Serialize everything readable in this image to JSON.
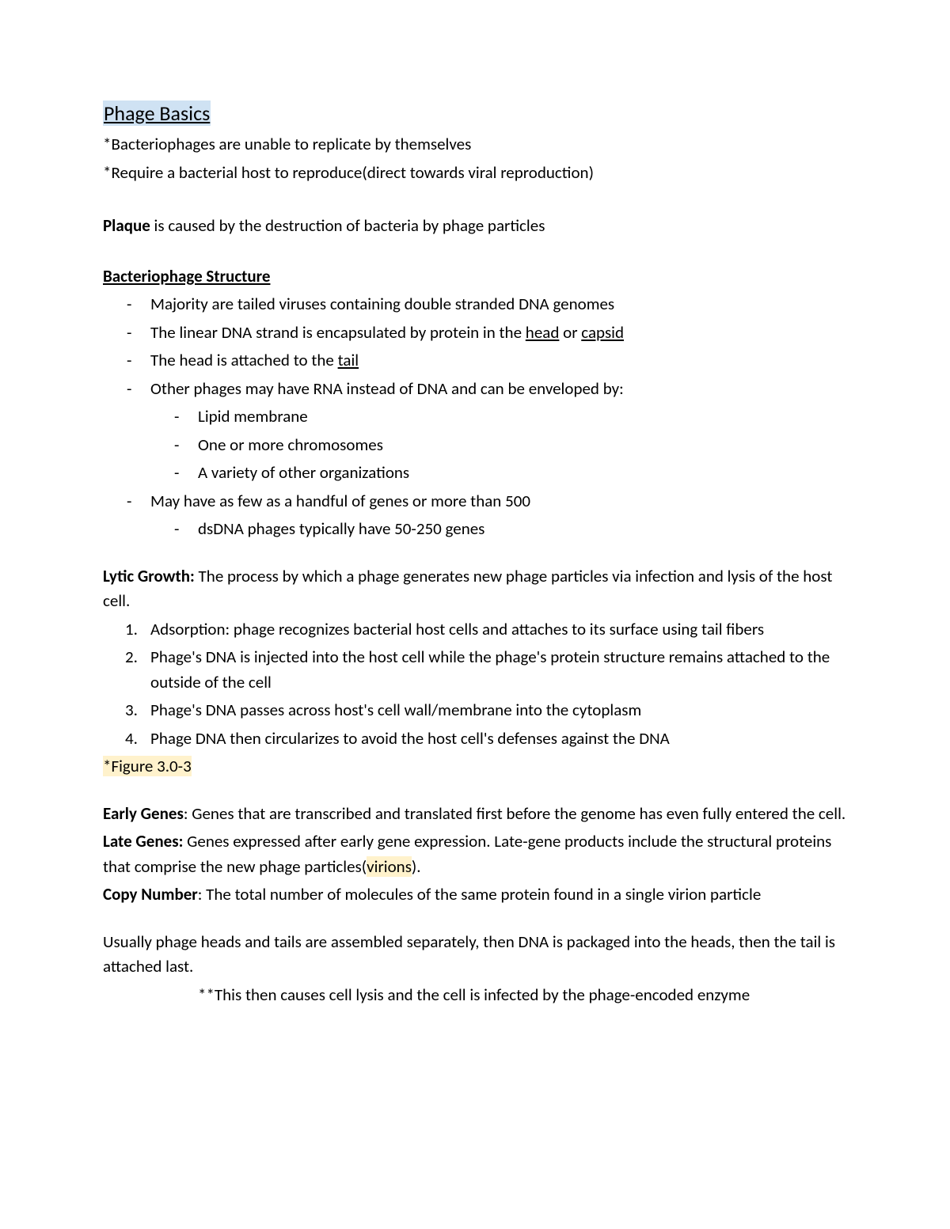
{
  "title": "Phage Basics",
  "intro": {
    "line1": "*Bacteriophages are unable to replicate by themselves",
    "line2": "*Require a bacterial host to reproduce(direct towards viral reproduction)"
  },
  "plaque": {
    "bold": "Plaque",
    "rest": " is caused by the destruction of bacteria by phage particles"
  },
  "structure": {
    "heading": "Bacteriophage Structure",
    "items": {
      "a": "Majority are tailed viruses containing double stranded DNA genomes",
      "b_pre": "The linear DNA strand is encapsulated by protein in the ",
      "b_u1": "head",
      "b_mid": " or ",
      "b_u2": "capsid",
      "c_pre": "The head is attached to the ",
      "c_u": "tail",
      "d": "Other phages may have RNA instead of DNA and can be enveloped by:",
      "d1": "Lipid membrane",
      "d2": "One or more chromosomes",
      "d3": "A variety of other organizations",
      "e": "May have as few as a handful of genes or more than 500",
      "e1": "dsDNA phages typically have 50-250 genes"
    }
  },
  "lytic": {
    "label": "Lytic Growth:",
    "def": " The process by which a phage generates new phage particles via infection and lysis of the host cell.",
    "steps": {
      "s1": "Adsorption: phage recognizes bacterial host cells and attaches to its surface using tail fibers",
      "s2": "Phage's DNA is injected into the host cell while the phage's protein structure remains attached to the outside of the cell",
      "s3": "Phage's DNA passes across host's cell wall/membrane into the cytoplasm",
      "s4": "Phage DNA then circularizes to avoid the host cell's defenses against the DNA"
    }
  },
  "figure": "*Figure 3.0-3",
  "early": {
    "label": "Early Genes",
    "def": ": Genes that are transcribed and translated first before the genome has even fully entered the cell."
  },
  "late": {
    "label": "Late Genes:",
    "def_pre": " Genes expressed after early gene expression. Late-gene products include the structural proteins that comprise the new phage particles(",
    "virions": "virions",
    "def_post": ")."
  },
  "copy": {
    "label": "Copy Number",
    "def": ": The total number of molecules of the same protein found in a single virion particle"
  },
  "assembly": {
    "line": "Usually phage heads and tails are assembled separately, then DNA is packaged into the heads, then the tail is attached last.",
    "note": "**This then causes cell lysis and the cell is infected by the phage-encoded enzyme"
  }
}
